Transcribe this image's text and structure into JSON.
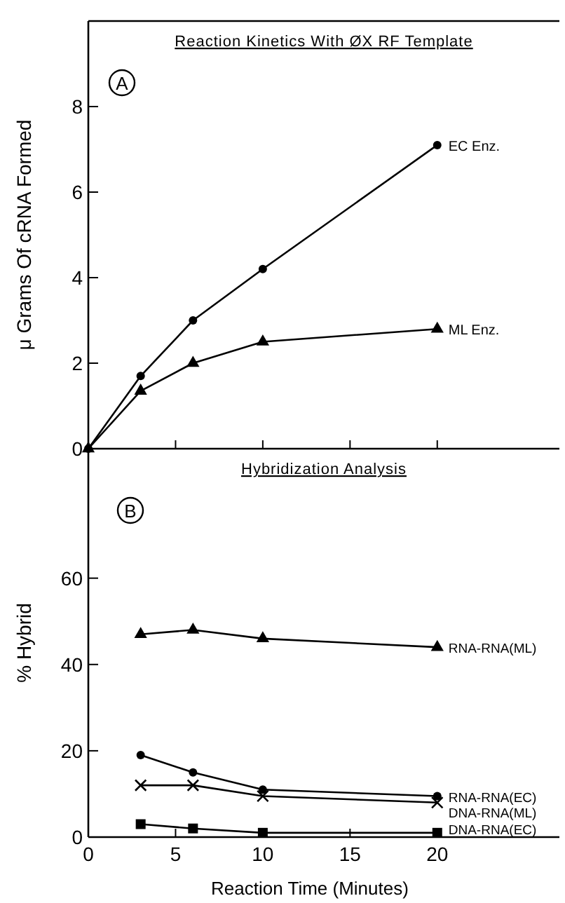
{
  "chart_data": [
    {
      "type": "line",
      "title": "Reaction Kinetics With ØX RF Template",
      "ylabel": "μ Grams Of cRNA Formed",
      "annotations": [
        "A"
      ],
      "xlim": [
        0,
        27
      ],
      "xticks": [
        0,
        5,
        10,
        15,
        20
      ],
      "ylim": [
        0,
        10
      ],
      "yticks": [
        0,
        2,
        4,
        6,
        8
      ],
      "tick_labels": "y",
      "grid": false,
      "legend": false,
      "line_style": "solid",
      "series": [
        {
          "name": "EC Enz.",
          "color": "#000000",
          "marker": "circle",
          "x": [
            0,
            3,
            6,
            10,
            20
          ],
          "values": [
            0,
            1.7,
            3,
            4.2,
            7.1
          ]
        },
        {
          "name": "ML Enz.",
          "color": "#000000",
          "marker": "triangle",
          "x": [
            0,
            3,
            6,
            10,
            20
          ],
          "values": [
            0,
            1.35,
            2,
            2.5,
            2.8
          ]
        }
      ]
    },
    {
      "type": "line",
      "title": "Hybridization Analysis",
      "xlabel": "Reaction Time (Minutes)",
      "ylabel": "% Hybrid",
      "annotations": [
        "B"
      ],
      "xlim": [
        0,
        27
      ],
      "xticks": [
        0,
        5,
        10,
        15,
        20
      ],
      "ylim": [
        0,
        90
      ],
      "yticks": [
        0,
        20,
        40,
        60
      ],
      "grid": false,
      "legend": false,
      "line_style": "solid",
      "series": [
        {
          "name": "RNA-RNA(ML)",
          "color": "#000000",
          "marker": "triangle",
          "x": [
            3,
            6,
            10,
            20
          ],
          "values": [
            47,
            48,
            46,
            44
          ]
        },
        {
          "name": "RNA-RNA(EC)",
          "color": "#000000",
          "marker": "circle",
          "x": [
            3,
            6,
            10,
            20
          ],
          "values": [
            19,
            15,
            11,
            9.5
          ]
        },
        {
          "name": "DNA-RNA(ML)",
          "color": "#000000",
          "marker": "cross",
          "x": [
            3,
            6,
            10,
            20
          ],
          "values": [
            12,
            12,
            9.5,
            8
          ]
        },
        {
          "name": "DNA-RNA(EC)",
          "color": "#000000",
          "marker": "square",
          "x": [
            3,
            6,
            10,
            20
          ],
          "values": [
            3,
            2,
            1,
            1
          ]
        }
      ]
    }
  ]
}
